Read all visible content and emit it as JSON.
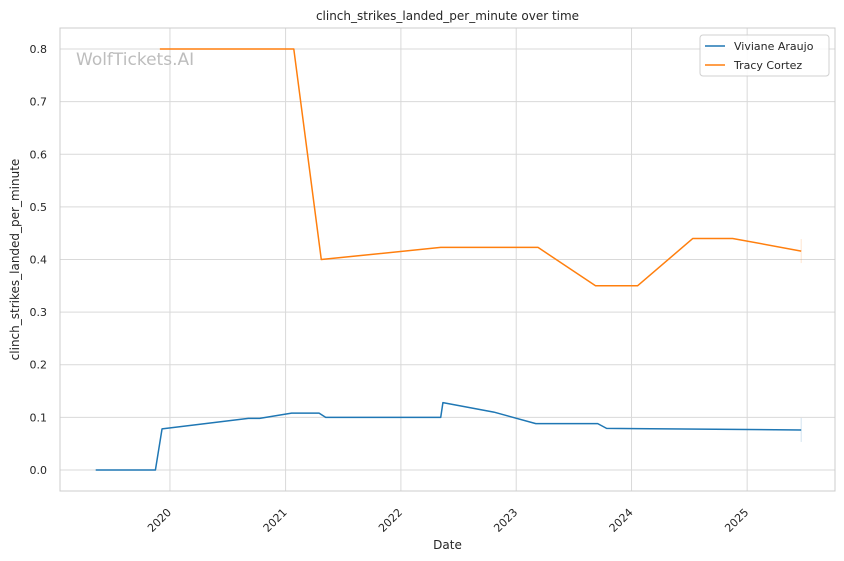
{
  "chart_data": {
    "type": "line",
    "title": "clinch_strikes_landed_per_minute over time",
    "xlabel": "Date",
    "ylabel": "clinch_strikes_landed_per_minute",
    "watermark": "WolfTickets.AI",
    "x_ticks": [
      "2020",
      "2021",
      "2022",
      "2023",
      "2024",
      "2025"
    ],
    "y_ticks": [
      "0.0",
      "0.1",
      "0.2",
      "0.3",
      "0.4",
      "0.5",
      "0.6",
      "0.7",
      "0.8"
    ],
    "xlim": [
      "2019-01-18",
      "2025-10-06"
    ],
    "ylim": [
      -0.04,
      0.84
    ],
    "grid": true,
    "legend_position": "top-right",
    "series": [
      {
        "name": "Viviane Araujo",
        "color": "#1f77b4",
        "points": [
          [
            "2019-05-11",
            0.0
          ],
          [
            "2019-11-16",
            0.0
          ],
          [
            "2019-12-07",
            0.078
          ],
          [
            "2020-09-05",
            0.098
          ],
          [
            "2020-10-11",
            0.098
          ],
          [
            "2021-01-20",
            0.108
          ],
          [
            "2021-04-17",
            0.108
          ],
          [
            "2021-05-08",
            0.1
          ],
          [
            "2022-05-07",
            0.1
          ],
          [
            "2022-05-14",
            0.128
          ],
          [
            "2022-10-22",
            0.11
          ],
          [
            "2023-03-04",
            0.088
          ],
          [
            "2023-09-16",
            0.088
          ],
          [
            "2023-10-14",
            0.079
          ],
          [
            "2025-06-21",
            0.076
          ]
        ]
      },
      {
        "name": "Tracy Cortez",
        "color": "#ff7f0e",
        "points": [
          [
            "2019-11-30",
            0.8
          ],
          [
            "2021-01-27",
            0.8
          ],
          [
            "2021-04-24",
            0.4
          ],
          [
            "2022-05-07",
            0.423
          ],
          [
            "2023-03-11",
            0.423
          ],
          [
            "2023-09-09",
            0.35
          ],
          [
            "2024-01-20",
            0.35
          ],
          [
            "2024-07-13",
            0.44
          ],
          [
            "2024-11-16",
            0.44
          ],
          [
            "2025-06-21",
            0.416
          ]
        ]
      }
    ]
  }
}
